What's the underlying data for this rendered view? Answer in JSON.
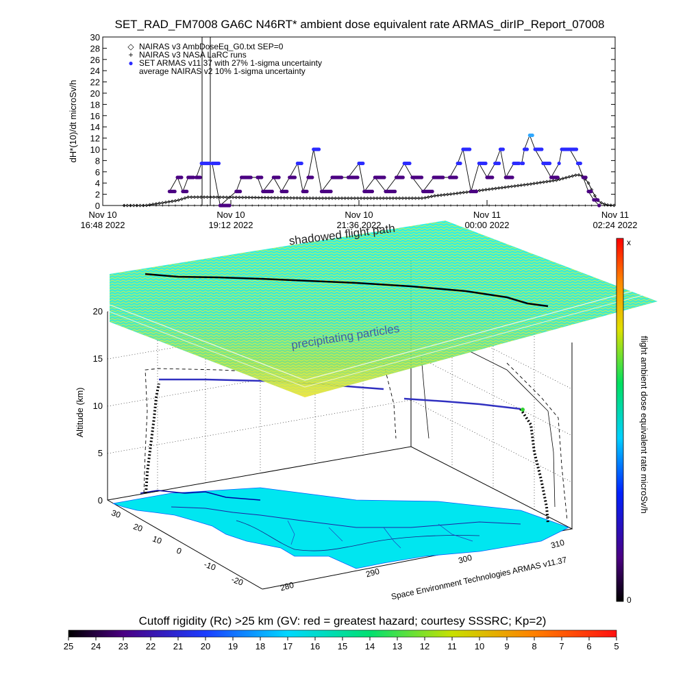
{
  "title": "SET_RAD_FM7008  GA6C N46RT* ambient dose equivalent rate ARMAS_dirIP_Report_07008",
  "top_plot": {
    "ylabel": "dH*(10)/dt microSv/h",
    "yticks": [
      "0",
      "2",
      "4",
      "6",
      "8",
      "10",
      "12",
      "14",
      "16",
      "18",
      "20",
      "22",
      "24",
      "26",
      "28",
      "30"
    ],
    "xticks": [
      {
        "line1": "Nov 10",
        "line2": "16:48 2022"
      },
      {
        "line1": "Nov 10",
        "line2": "19:12 2022"
      },
      {
        "line1": "Nov 10",
        "line2": "21:36 2022"
      },
      {
        "line1": "Nov 11",
        "line2": "00:00 2022"
      },
      {
        "line1": "Nov 11",
        "line2": "02:24 2022"
      }
    ],
    "legend": [
      {
        "symbol": "◇",
        "label": "NAIRAS v3 AmbDoseEq_G0.txt SEP=0"
      },
      {
        "symbol": "+",
        "label": "NAIRAS v3 NASA LaRC runs"
      },
      {
        "symbol": "●",
        "label": "SET ARMAS v11.37 with 27% 1-sigma uncertainty"
      },
      {
        "symbol": "",
        "label": "average NAIRAS v2 10% 1-sigma uncertainty"
      }
    ]
  },
  "chart_data": [
    {
      "type": "scatter",
      "title": "SET_RAD_FM7008  GA6C N46RT* ambient dose equivalent rate ARMAS_dirIP_Report_07008",
      "xlabel": "",
      "ylabel": "dH*(10)/dt microSv/h",
      "x_range": [
        "Nov 10 16:48 2022",
        "Nov 11 02:24 2022"
      ],
      "ylim": [
        0,
        30
      ],
      "series": [
        {
          "name": "NAIRAS v3 AmbDoseEq_G0.txt SEP=0",
          "marker": "diamond",
          "values_hours": [
            [
              0.0,
              0
            ],
            [
              0.8,
              0
            ],
            [
              1.4,
              0.9
            ],
            [
              1.6,
              1.5
            ],
            [
              2.0,
              1.5
            ],
            [
              3,
              1.4
            ],
            [
              4,
              1.3
            ],
            [
              5,
              1.3
            ],
            [
              6,
              1.3
            ],
            [
              6.2,
              1.7
            ],
            [
              6.5,
              2.0
            ],
            [
              7.0,
              2.6
            ],
            [
              7.5,
              3.2
            ],
            [
              8.0,
              3.8
            ],
            [
              8.5,
              4.5
            ],
            [
              8.9,
              5.5
            ],
            [
              9.0,
              5.2
            ],
            [
              9.1,
              4.0
            ],
            [
              9.2,
              2.0
            ],
            [
              9.3,
              0.6
            ],
            [
              9.45,
              0.1
            ],
            [
              9.6,
              0
            ]
          ]
        },
        {
          "name": "NAIRAS v3 NASA LaRC runs",
          "marker": "plus",
          "values_hours": [
            [
              0,
              0
            ],
            [
              1.5,
              0
            ],
            [
              4,
              0
            ],
            [
              6,
              0
            ],
            [
              8,
              0
            ],
            [
              9.6,
              0
            ]
          ]
        },
        {
          "name": "SET ARMAS v11.37 with 27% 1-sigma uncertainty",
          "marker": "dot",
          "values_hours": [
            [
              1.25,
              2.5
            ],
            [
              1.4,
              5
            ],
            [
              1.5,
              2.5
            ],
            [
              1.6,
              5
            ],
            [
              1.75,
              5
            ],
            [
              1.85,
              7.5
            ],
            [
              2.05,
              7.5
            ],
            [
              2.2,
              0
            ],
            [
              2.5,
              2.5
            ],
            [
              2.6,
              5
            ],
            [
              2.9,
              5
            ],
            [
              3.0,
              2.5
            ],
            [
              3.2,
              5
            ],
            [
              3.35,
              2.5
            ],
            [
              3.5,
              5
            ],
            [
              3.65,
              7.5
            ],
            [
              3.75,
              2.5
            ],
            [
              3.85,
              5
            ],
            [
              3.95,
              10
            ],
            [
              4.1,
              2.5
            ],
            [
              4.3,
              5
            ],
            [
              4.6,
              5
            ],
            [
              4.8,
              7.5
            ],
            [
              4.9,
              2.5
            ],
            [
              5.1,
              5
            ],
            [
              5.3,
              2.5
            ],
            [
              5.5,
              5
            ],
            [
              5.65,
              7.5
            ],
            [
              5.8,
              5
            ],
            [
              6.0,
              2.5
            ],
            [
              6.2,
              5
            ],
            [
              6.5,
              5
            ],
            [
              6.65,
              7.5
            ],
            [
              6.75,
              10
            ],
            [
              6.9,
              2.5
            ],
            [
              7.05,
              7.5
            ],
            [
              7.2,
              5
            ],
            [
              7.35,
              7.5
            ],
            [
              7.45,
              10
            ],
            [
              7.55,
              5
            ],
            [
              7.7,
              7.5
            ],
            [
              7.85,
              7.5
            ],
            [
              7.9,
              10
            ],
            [
              8.0,
              12.5
            ],
            [
              8.1,
              10
            ],
            [
              8.25,
              7.5
            ],
            [
              8.4,
              5
            ],
            [
              8.55,
              7.5
            ],
            [
              8.6,
              10
            ],
            [
              8.75,
              10
            ],
            [
              8.9,
              7.5
            ],
            [
              9.0,
              5
            ],
            [
              9.1,
              2.5
            ],
            [
              9.2,
              1
            ],
            [
              9.3,
              0
            ]
          ]
        }
      ]
    },
    {
      "type": "scatter",
      "title": "",
      "xlabel": "",
      "ylabel": "Altitude (km)",
      "zlim": [
        0,
        20
      ],
      "z_ticks": [
        "0",
        "5",
        "10",
        "15",
        "20"
      ],
      "lat_ticks": [
        "-20",
        "-10",
        "0",
        "10",
        "20",
        "30"
      ],
      "lon_ticks": [
        "280",
        "290",
        "300",
        "310"
      ],
      "annotations": [
        "shadowed flight path",
        "precipitating particles"
      ],
      "flight_path_altitude_km": [
        0,
        3,
        8,
        12.5,
        12.6,
        12.2,
        11.5,
        11.0,
        10.8,
        10.6,
        10.2,
        9.8,
        3,
        0
      ]
    }
  ],
  "scene": {
    "altitude_label": "Altitude (km)",
    "shadow_label": "shadowed flight path",
    "particles_label": "precipitating particles",
    "credit": "Space Environment Technologies ARMAS v11.37",
    "z_ticks": [
      "0",
      "5",
      "10",
      "15",
      "20"
    ],
    "lat_ticks": [
      "-20",
      "-10",
      "0",
      "10",
      "20",
      "30"
    ],
    "lon_ticks": [
      "280",
      "290",
      "300",
      "310"
    ]
  },
  "colorbar_right": {
    "label": "flight ambient dose equivalent rate microSv/h",
    "top_label": "x",
    "bottom_label": "0"
  },
  "colorbar_bottom": {
    "label": "Cutoff rigidity (Rc) >25 km (GV: red = greatest hazard; courtesy SSSRC; Kp=2)",
    "ticks": [
      "25",
      "24",
      "23",
      "22",
      "21",
      "20",
      "19",
      "18",
      "17",
      "16",
      "15",
      "14",
      "13",
      "12",
      "11",
      "10",
      "9",
      "8",
      "7",
      "6",
      "5"
    ]
  },
  "colors": {
    "nairas": "#000000",
    "armas_low": "#4b0082",
    "armas_mid": "#2b2bff",
    "armas_high": "#2fa8ff",
    "ground_cyan": "#00e6f0"
  }
}
